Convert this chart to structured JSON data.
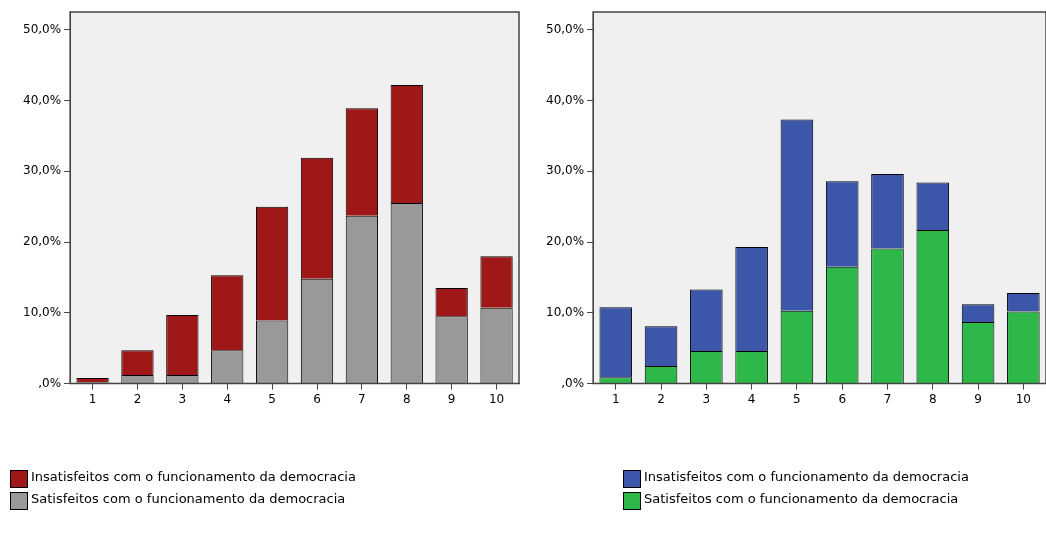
{
  "chart_data": [
    {
      "type": "bar",
      "categories": [
        "1",
        "2",
        "3",
        "4",
        "5",
        "6",
        "7",
        "8",
        "9",
        "10"
      ],
      "stacked": true,
      "grid": false,
      "legend": "bottom left",
      "ylim": [
        0,
        52.5
      ],
      "yticks": [
        {
          "value": 0,
          "label": ",0%"
        },
        {
          "value": 10,
          "label": "10,0%"
        },
        {
          "value": 20,
          "label": "20,0%"
        },
        {
          "value": 30,
          "label": "30,0%"
        },
        {
          "value": 40,
          "label": "40,0%"
        },
        {
          "value": 50,
          "label": "50,0%"
        }
      ],
      "series": [
        {
          "name": "Satisfeitos com o funcionamento da democracia",
          "color": "#999999",
          "values": [
            0.2,
            1.2,
            1.2,
            4.7,
            8.9,
            14.8,
            23.7,
            25.5,
            9.5,
            10.7
          ]
        },
        {
          "name": "Insatisfeitos com o funcionamento da democracia",
          "color": "#9e1818",
          "values": [
            0.6,
            3.5,
            8.5,
            10.6,
            16.1,
            17.1,
            15.2,
            16.7,
            4.0,
            7.3
          ]
        }
      ]
    },
    {
      "type": "bar",
      "categories": [
        "1",
        "2",
        "3",
        "4",
        "5",
        "6",
        "7",
        "8",
        "9",
        "10"
      ],
      "stacked": true,
      "grid": false,
      "legend": "bottom",
      "ylim": [
        0,
        52.5
      ],
      "yticks": [
        {
          "value": 0,
          "label": ",0%"
        },
        {
          "value": 10,
          "label": "10,0%"
        },
        {
          "value": 20,
          "label": "20,0%"
        },
        {
          "value": 30,
          "label": "30,0%"
        },
        {
          "value": 40,
          "label": "40,0%"
        },
        {
          "value": 50,
          "label": "50,0%"
        }
      ],
      "series": [
        {
          "name": "Satisfeitos com o funcionamento da democracia",
          "color": "#2fb84a",
          "values": [
            0.9,
            2.5,
            4.6,
            4.6,
            10.3,
            16.5,
            19.1,
            21.7,
            8.7,
            10.2
          ]
        },
        {
          "name": "Insatisfeitos com o funcionamento da democracia",
          "color": "#3c57a9",
          "values": [
            9.9,
            5.6,
            8.7,
            14.7,
            27.0,
            12.1,
            10.5,
            6.7,
            2.5,
            2.6
          ]
        }
      ]
    }
  ]
}
